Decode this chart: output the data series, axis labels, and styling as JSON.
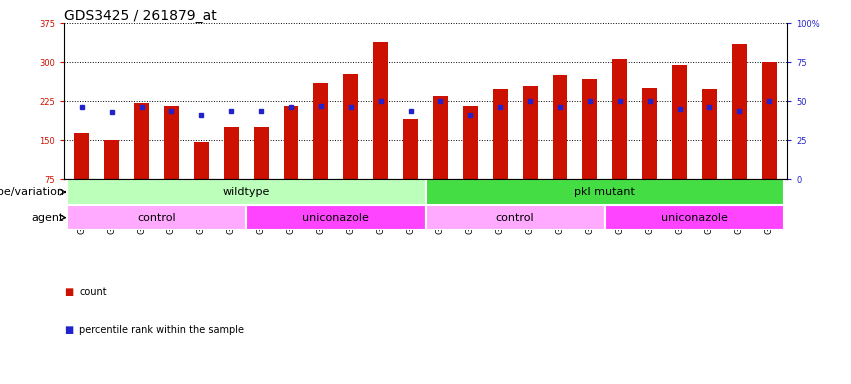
{
  "title": "GDS3425 / 261879_at",
  "samples": [
    "GSM299321",
    "GSM299322",
    "GSM299323",
    "GSM299324",
    "GSM299325",
    "GSM299326",
    "GSM299333",
    "GSM299334",
    "GSM299335",
    "GSM299336",
    "GSM299337",
    "GSM299338",
    "GSM299327",
    "GSM299328",
    "GSM299329",
    "GSM299330",
    "GSM299331",
    "GSM299332",
    "GSM299339",
    "GSM299340",
    "GSM299341",
    "GSM299408",
    "GSM299409",
    "GSM299410"
  ],
  "counts": [
    163,
    150,
    222,
    215,
    147,
    175,
    175,
    215,
    260,
    278,
    338,
    190,
    235,
    215,
    248,
    255,
    275,
    268,
    305,
    250,
    295,
    248,
    335,
    300
  ],
  "percentile_ranks": [
    46,
    43,
    46,
    44,
    41,
    44,
    44,
    46,
    47,
    46,
    50,
    44,
    50,
    41,
    46,
    50,
    46,
    50,
    50,
    50,
    45,
    46,
    44,
    50
  ],
  "ylim_left": [
    75,
    375
  ],
  "ylim_right": [
    0,
    100
  ],
  "yticks_left": [
    75,
    150,
    225,
    300,
    375
  ],
  "yticks_right": [
    0,
    25,
    50,
    75,
    100
  ],
  "bar_color": "#cc1100",
  "dot_color": "#2222cc",
  "genotype_groups": [
    {
      "label": "wildtype",
      "start": 0,
      "end": 12,
      "color": "#bbffbb"
    },
    {
      "label": "pkl mutant",
      "start": 12,
      "end": 24,
      "color": "#44dd44"
    }
  ],
  "agent_groups": [
    {
      "label": "control",
      "start": 0,
      "end": 6,
      "color": "#ffaaff"
    },
    {
      "label": "uniconazole",
      "start": 6,
      "end": 12,
      "color": "#ff44ff"
    },
    {
      "label": "control",
      "start": 12,
      "end": 18,
      "color": "#ffaaff"
    },
    {
      "label": "uniconazole",
      "start": 18,
      "end": 24,
      "color": "#ff44ff"
    }
  ],
  "bar_color_legend": "#cc1100",
  "dot_color_legend": "#2222cc",
  "title_fontsize": 10,
  "tick_fontsize": 6,
  "label_fontsize": 8,
  "group_label_fontsize": 8
}
